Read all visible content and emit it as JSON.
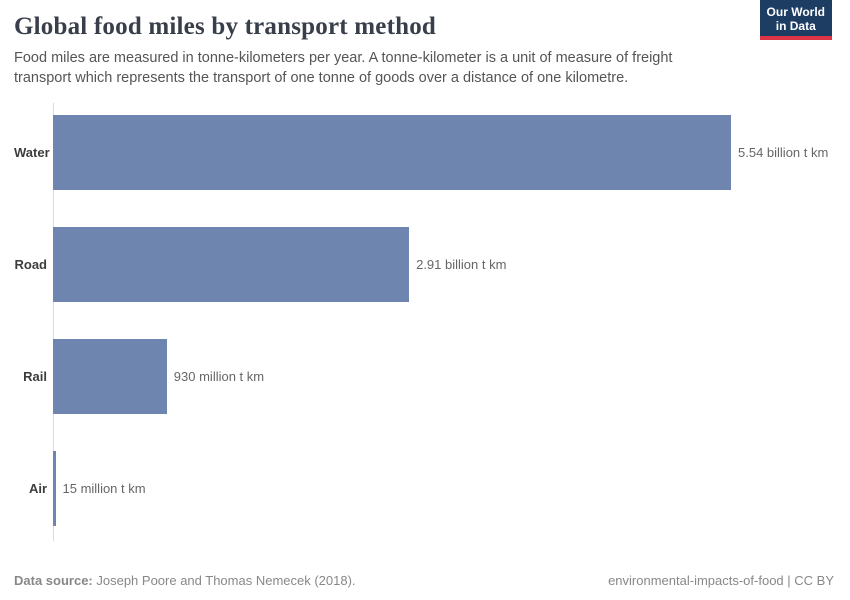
{
  "header": {
    "title": "Global food miles by transport method",
    "subtitle": "Food miles are measured in tonne-kilometers per year. A tonne-kilometer is a unit of measure of freight transport which represents the transport of one tonne of goods over a distance of one kilometre.",
    "logo": {
      "line1": "Our World",
      "line2": "in Data"
    }
  },
  "chart_data": {
    "type": "bar",
    "orientation": "horizontal",
    "title": "Global food miles by transport method",
    "categories": [
      "Water",
      "Road",
      "Rail",
      "Air"
    ],
    "values": [
      5.54,
      2.91,
      0.93,
      0.015
    ],
    "unit": "billion tonne-kilometers",
    "value_labels": [
      "5.54 billion t km",
      "2.91 billion t km",
      "930 million t km",
      "15 million t km"
    ],
    "xlim": [
      0,
      5.54
    ],
    "grid": false,
    "legend": "none",
    "bar_color": "#6e85b0"
  },
  "footer": {
    "source_label": "Data source:",
    "source_text": " Joseph Poore and Thomas Nemecek (2018).",
    "attribution": "environmental-impacts-of-food | CC BY"
  },
  "colors": {
    "bar": "#6e85b0",
    "logo_navy": "#1d3d63",
    "logo_red": "#dc3545",
    "axis_line": "#dcdcdc",
    "title_text": "#383f4a",
    "subtitle_text": "#555555",
    "value_text": "#666666",
    "footer_text": "#888888"
  }
}
